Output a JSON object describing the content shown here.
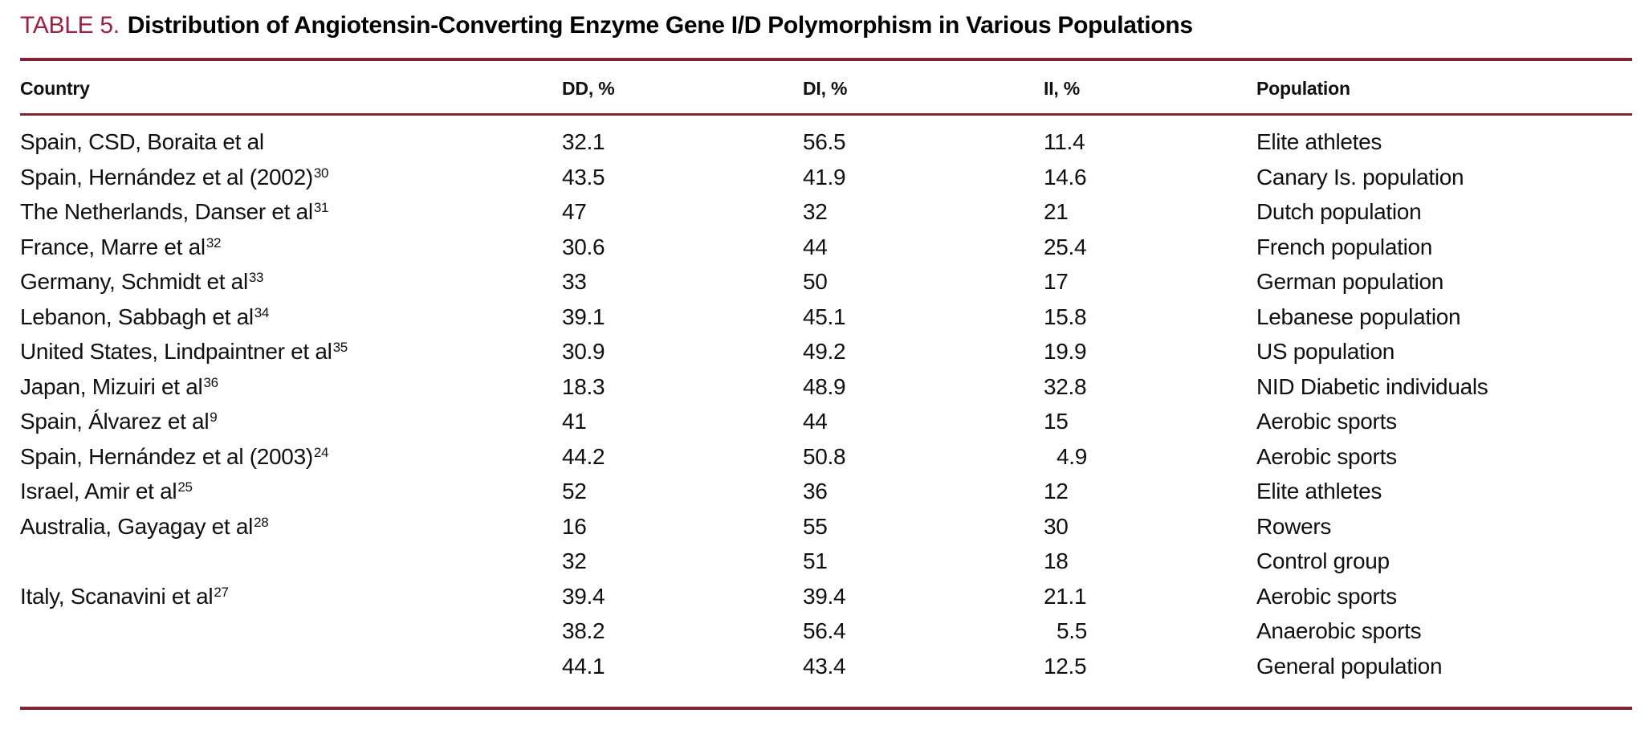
{
  "title": {
    "label": "TABLE 5.",
    "text": "Distribution of Angiotensin-Converting Enzyme Gene I/D Polymorphism in Various Populations"
  },
  "colors": {
    "accent_title": "#a21e41",
    "rule": "#832334",
    "body_text": "#101010",
    "background": "#ffffff"
  },
  "table": {
    "columns": [
      "Country",
      "DD, %",
      "DI, %",
      "II, %",
      "Population"
    ],
    "rows": [
      {
        "country": "Spain, CSD, Boraita et al",
        "sup": "",
        "dd": "32.1",
        "di": "56.5",
        "ii": "11.4",
        "population": "Elite athletes"
      },
      {
        "country": "Spain, Hernández et al (2002)",
        "sup": "30",
        "dd": "43.5",
        "di": "41.9",
        "ii": "14.6",
        "population": "Canary Is. population"
      },
      {
        "country": "The Netherlands, Danser et al",
        "sup": "31",
        "dd": "47",
        "di": "32",
        "ii": "21",
        "population": "Dutch population"
      },
      {
        "country": "France, Marre et al",
        "sup": "32",
        "dd": "30.6",
        "di": "44",
        "ii": "25.4",
        "population": "French population"
      },
      {
        "country": "Germany, Schmidt et al",
        "sup": "33",
        "dd": "33",
        "di": "50",
        "ii": "17",
        "population": "German population"
      },
      {
        "country": "Lebanon, Sabbagh et al",
        "sup": "34",
        "dd": "39.1",
        "di": "45.1",
        "ii": "15.8",
        "population": "Lebanese population"
      },
      {
        "country": "United States, Lindpaintner et al",
        "sup": "35",
        "dd": "30.9",
        "di": "49.2",
        "ii": "19.9",
        "population": "US population"
      },
      {
        "country": "Japan, Mizuiri et al",
        "sup": "36",
        "dd": "18.3",
        "di": "48.9",
        "ii": "32.8",
        "population": "NID Diabetic individuals"
      },
      {
        "country": "Spain, Álvarez et al",
        "sup": "9",
        "dd": "41",
        "di": "44",
        "ii": "15",
        "population": "Aerobic sports"
      },
      {
        "country": "Spain, Hernández et al (2003)",
        "sup": "24",
        "dd": "44.2",
        "di": "50.8",
        "ii": "4.9",
        "population": "Aerobic sports"
      },
      {
        "country": "Israel, Amir et al",
        "sup": "25",
        "dd": "52",
        "di": "36",
        "ii": "12",
        "population": "Elite athletes"
      },
      {
        "country": "Australia, Gayagay et al",
        "sup": "28",
        "dd": "16",
        "di": "55",
        "ii": "30",
        "population": "Rowers"
      },
      {
        "country": "",
        "sup": "",
        "dd": "32",
        "di": "51",
        "ii": "18",
        "population": "Control group"
      },
      {
        "country": "Italy, Scanavini et al",
        "sup": "27",
        "dd": "39.4",
        "di": "39.4",
        "ii": "21.1",
        "population": "Aerobic sports"
      },
      {
        "country": "",
        "sup": "",
        "dd": "38.2",
        "di": "56.4",
        "ii": "5.5",
        "population": "Anaerobic sports"
      },
      {
        "country": "",
        "sup": "",
        "dd": "44.1",
        "di": "43.4",
        "ii": "12.5",
        "population": "General population"
      }
    ]
  }
}
